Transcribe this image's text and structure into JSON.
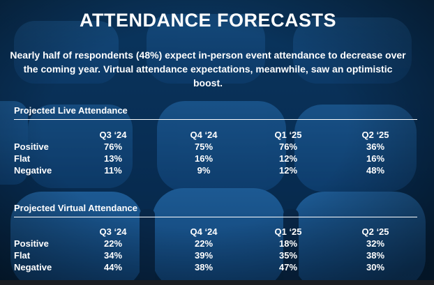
{
  "title": "ATTENDANCE FORECASTS",
  "subtitle": "Nearly half of respondents (48%) expect in-person event attendance to decrease over the coming year. Virtual attendance expectations, meanwhile, saw an optimistic boost.",
  "colors": {
    "background": "#0b2f55",
    "text": "#ffffff",
    "seat": "#1f6bb3"
  },
  "chart_data": [
    {
      "type": "table",
      "title": "Projected Live Attendance",
      "columns": [
        "Q3 ‘24",
        "Q4 ‘24",
        "Q1 ‘25",
        "Q2 ‘25"
      ],
      "rows": [
        {
          "label": "Positive",
          "values": [
            "76%",
            "75%",
            "76%",
            "36%"
          ]
        },
        {
          "label": "Flat",
          "values": [
            "13%",
            "16%",
            "12%",
            "16%"
          ]
        },
        {
          "label": "Negative",
          "values": [
            "11%",
            "9%",
            "12%",
            "48%"
          ]
        }
      ]
    },
    {
      "type": "table",
      "title": "Projected Virtual Attendance",
      "columns": [
        "Q3 ‘24",
        "Q4 ‘24",
        "Q1 ‘25",
        "Q2 ‘25"
      ],
      "rows": [
        {
          "label": "Positive",
          "values": [
            "22%",
            "22%",
            "18%",
            "32%"
          ]
        },
        {
          "label": "Flat",
          "values": [
            "34%",
            "39%",
            "35%",
            "38%"
          ]
        },
        {
          "label": "Negative",
          "values": [
            "44%",
            "38%",
            "47%",
            "30%"
          ]
        }
      ]
    }
  ]
}
